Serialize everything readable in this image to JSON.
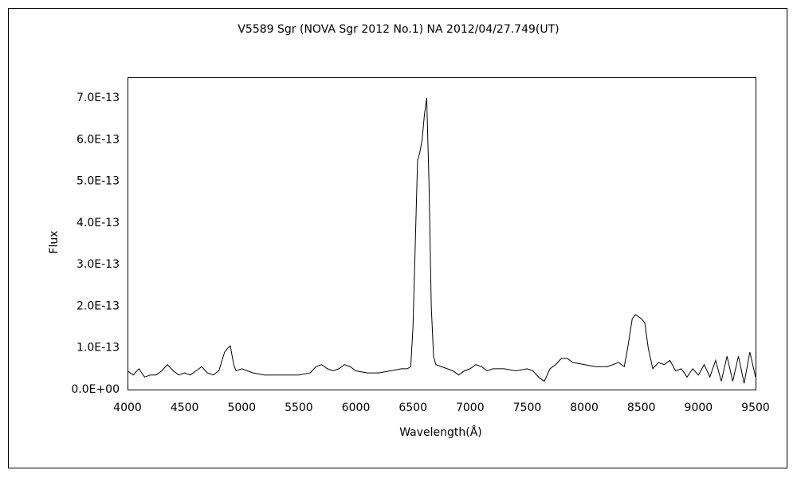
{
  "chart_data": {
    "type": "line",
    "title": "V5589 Sgr (NOVA Sgr 2012 No.1)    NA    2012/04/27.749(UT)",
    "x_label": "Wavelength(Å)",
    "y_label": "Flux",
    "xlim": [
      4000,
      9500
    ],
    "ylim": [
      0,
      7.5e-13
    ],
    "xticks": [
      4000,
      4500,
      5000,
      5500,
      6000,
      6500,
      7000,
      7500,
      8000,
      8500,
      9000,
      9500
    ],
    "yticks": [
      {
        "value": 0,
        "label": "0.0E+00"
      },
      {
        "value": 1e-13,
        "label": "1.0E-13"
      },
      {
        "value": 2e-13,
        "label": "2.0E-13"
      },
      {
        "value": 3e-13,
        "label": "3.0E-13"
      },
      {
        "value": 4e-13,
        "label": "4.0E-13"
      },
      {
        "value": 5e-13,
        "label": "5.0E-13"
      },
      {
        "value": 6e-13,
        "label": "6.0E-13"
      },
      {
        "value": 7e-13,
        "label": "7.0E-13"
      }
    ],
    "grid": false,
    "x": [
      4000,
      4050,
      4100,
      4150,
      4200,
      4250,
      4300,
      4350,
      4400,
      4450,
      4500,
      4550,
      4600,
      4650,
      4700,
      4750,
      4800,
      4850,
      4880,
      4900,
      4930,
      4950,
      5000,
      5050,
      5100,
      5200,
      5300,
      5400,
      5500,
      5600,
      5650,
      5700,
      5750,
      5800,
      5850,
      5900,
      5950,
      6000,
      6100,
      6200,
      6300,
      6400,
      6450,
      6480,
      6500,
      6520,
      6540,
      6560,
      6580,
      6600,
      6620,
      6640,
      6660,
      6680,
      6700,
      6750,
      6800,
      6850,
      6900,
      6950,
      7000,
      7050,
      7100,
      7150,
      7200,
      7300,
      7400,
      7500,
      7550,
      7600,
      7650,
      7700,
      7750,
      7800,
      7850,
      7900,
      8000,
      8100,
      8200,
      8300,
      8350,
      8380,
      8420,
      8450,
      8500,
      8530,
      8560,
      8600,
      8650,
      8700,
      8750,
      8800,
      8850,
      8900,
      8950,
      9000,
      9050,
      9100,
      9150,
      9200,
      9250,
      9300,
      9350,
      9400,
      9450,
      9500
    ],
    "series": [
      {
        "name": "Flux",
        "color": "#000000",
        "values": [
          4.5e-14,
          3.5e-14,
          5e-14,
          3e-14,
          3.5e-14,
          3.5e-14,
          4.5e-14,
          6e-14,
          4.5e-14,
          3.5e-14,
          4e-14,
          3.5e-14,
          4.5e-14,
          5.5e-14,
          4e-14,
          3.5e-14,
          4.5e-14,
          9e-14,
          1e-13,
          1.05e-13,
          6e-14,
          4.5e-14,
          5e-14,
          4.5e-14,
          4e-14,
          3.5e-14,
          3.5e-14,
          3.5e-14,
          3.5e-14,
          4e-14,
          5.5e-14,
          6e-14,
          5e-14,
          4.5e-14,
          5e-14,
          6e-14,
          5.5e-14,
          4.5e-14,
          4e-14,
          4e-14,
          4.5e-14,
          5e-14,
          5e-14,
          5.5e-14,
          1.5e-13,
          3.5e-13,
          5.5e-13,
          5.7e-13,
          6e-13,
          6.6e-13,
          7e-13,
          5e-13,
          2e-13,
          8e-14,
          6e-14,
          5.5e-14,
          5e-14,
          4.5e-14,
          3.5e-14,
          4.5e-14,
          5e-14,
          6e-14,
          5.5e-14,
          4.5e-14,
          5e-14,
          5e-14,
          4.5e-14,
          5e-14,
          4.5e-14,
          3e-14,
          2e-14,
          5e-14,
          6e-14,
          7.5e-14,
          7.5e-14,
          6.5e-14,
          6e-14,
          5.5e-14,
          5.5e-14,
          6.5e-14,
          5.5e-14,
          1e-13,
          1.7e-13,
          1.8e-13,
          1.7e-13,
          1.6e-13,
          1e-13,
          5e-14,
          6.5e-14,
          6e-14,
          7e-14,
          4.5e-14,
          5e-14,
          3e-14,
          5e-14,
          3.5e-14,
          6e-14,
          3e-14,
          7e-14,
          2e-14,
          8e-14,
          2e-14,
          8e-14,
          1.5e-14,
          9e-14,
          3e-14
        ]
      }
    ]
  }
}
